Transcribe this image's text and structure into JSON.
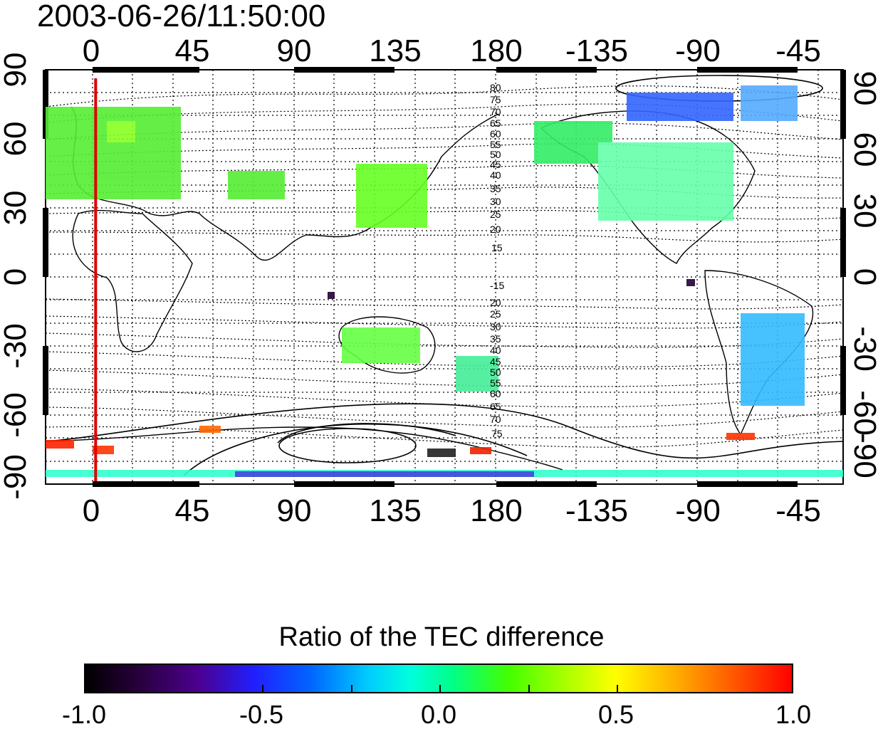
{
  "title": "2003-06-26/11:50:00",
  "map": {
    "top_lon_labels": [
      "0",
      "45",
      "90",
      "135",
      "180",
      "-135",
      "-90",
      "-45"
    ],
    "bottom_lon_labels": [
      "0",
      "45",
      "90",
      "135",
      "180",
      "-135",
      "-90",
      "-45"
    ],
    "left_lat_labels": [
      "90",
      "60",
      "30",
      "0",
      "-30",
      "-60",
      "-90"
    ],
    "right_lat_labels": [
      "90",
      "60",
      "30",
      "0",
      "-30",
      "-60",
      "-90"
    ],
    "north_contour_labels": [
      "80",
      "75",
      "70",
      "65",
      "60",
      "55",
      "50",
      "45",
      "40",
      "35",
      "30",
      "25",
      "20",
      "15"
    ],
    "south_contour_labels": [
      "-15",
      "20",
      "25",
      "30",
      "35",
      "40",
      "45",
      "50",
      "55",
      "60",
      "65",
      "70",
      "75"
    ],
    "marker_longitude": 2,
    "marker_color": "#dd0000"
  },
  "colorbar": {
    "title": "Ratio of the TEC difference",
    "tick_labels": [
      "-1.0",
      "-0.5",
      "0.0",
      "0.5",
      "1.0"
    ],
    "range": [
      -1.0,
      1.0
    ]
  }
}
